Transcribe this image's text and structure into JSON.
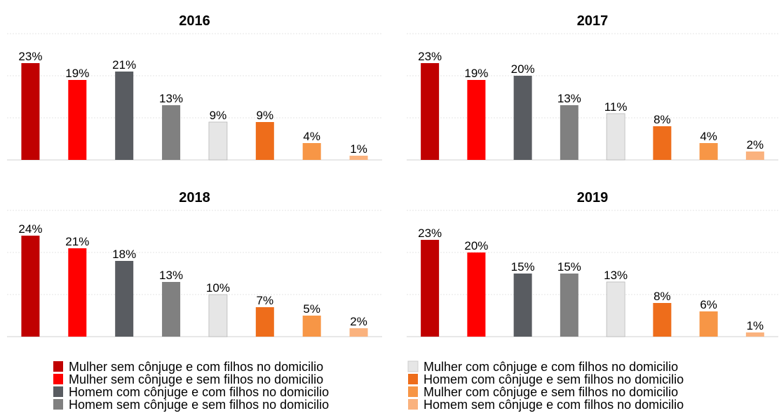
{
  "legend": [
    {
      "name": "Mulher sem cônjuge e com filhos no domicilio",
      "color": "#c00000"
    },
    {
      "name": "Mulher sem cônjuge e sem filhos no domicilio",
      "color": "#ff0000"
    },
    {
      "name": "Homem com cônjuge e com filhos no domicilio",
      "color": "#595c61"
    },
    {
      "name": "Homem sem cônjuge e sem filhos no domicilio",
      "color": "#808080"
    },
    {
      "name": "Mulher com cônjuge e com filhos no domicilio",
      "color": "#e6e6e6"
    },
    {
      "name": "Homem com cônjuge e sem filhos no domicilio",
      "color": "#ee6d1b"
    },
    {
      "name": "Mulher com cônjuge e sem filhos no domicilio",
      "color": "#f79646"
    },
    {
      "name": "Homem sem cônjuge e com filhos no domicilio",
      "color": "#fab27e"
    }
  ],
  "chart_data": [
    {
      "type": "bar",
      "title": "2016",
      "values": [
        23,
        19,
        21,
        13,
        9,
        9,
        4,
        1
      ],
      "value_labels": [
        "23%",
        "19%",
        "21%",
        "13%",
        "9%",
        "9%",
        "4%",
        "1%"
      ],
      "ylim": [
        0,
        30
      ],
      "yticks": [
        0,
        10,
        20,
        30
      ],
      "grid": true
    },
    {
      "type": "bar",
      "title": "2017",
      "values": [
        23,
        19,
        20,
        13,
        11,
        8,
        4,
        2
      ],
      "value_labels": [
        "23%",
        "19%",
        "20%",
        "13%",
        "11%",
        "8%",
        "4%",
        "2%"
      ],
      "ylim": [
        0,
        30
      ],
      "yticks": [
        0,
        10,
        20,
        30
      ],
      "grid": true
    },
    {
      "type": "bar",
      "title": "2018",
      "values": [
        24,
        21,
        18,
        13,
        10,
        7,
        5,
        2
      ],
      "value_labels": [
        "24%",
        "21%",
        "18%",
        "13%",
        "10%",
        "7%",
        "5%",
        "2%"
      ],
      "ylim": [
        0,
        30
      ],
      "yticks": [
        0,
        10,
        20,
        30
      ],
      "grid": true
    },
    {
      "type": "bar",
      "title": "2019",
      "values": [
        23,
        20,
        15,
        15,
        13,
        8,
        6,
        1
      ],
      "value_labels": [
        "23%",
        "20%",
        "15%",
        "15%",
        "13%",
        "8%",
        "6%",
        "1%"
      ],
      "ylim": [
        0,
        30
      ],
      "yticks": [
        0,
        10,
        20,
        30
      ],
      "grid": true
    }
  ]
}
